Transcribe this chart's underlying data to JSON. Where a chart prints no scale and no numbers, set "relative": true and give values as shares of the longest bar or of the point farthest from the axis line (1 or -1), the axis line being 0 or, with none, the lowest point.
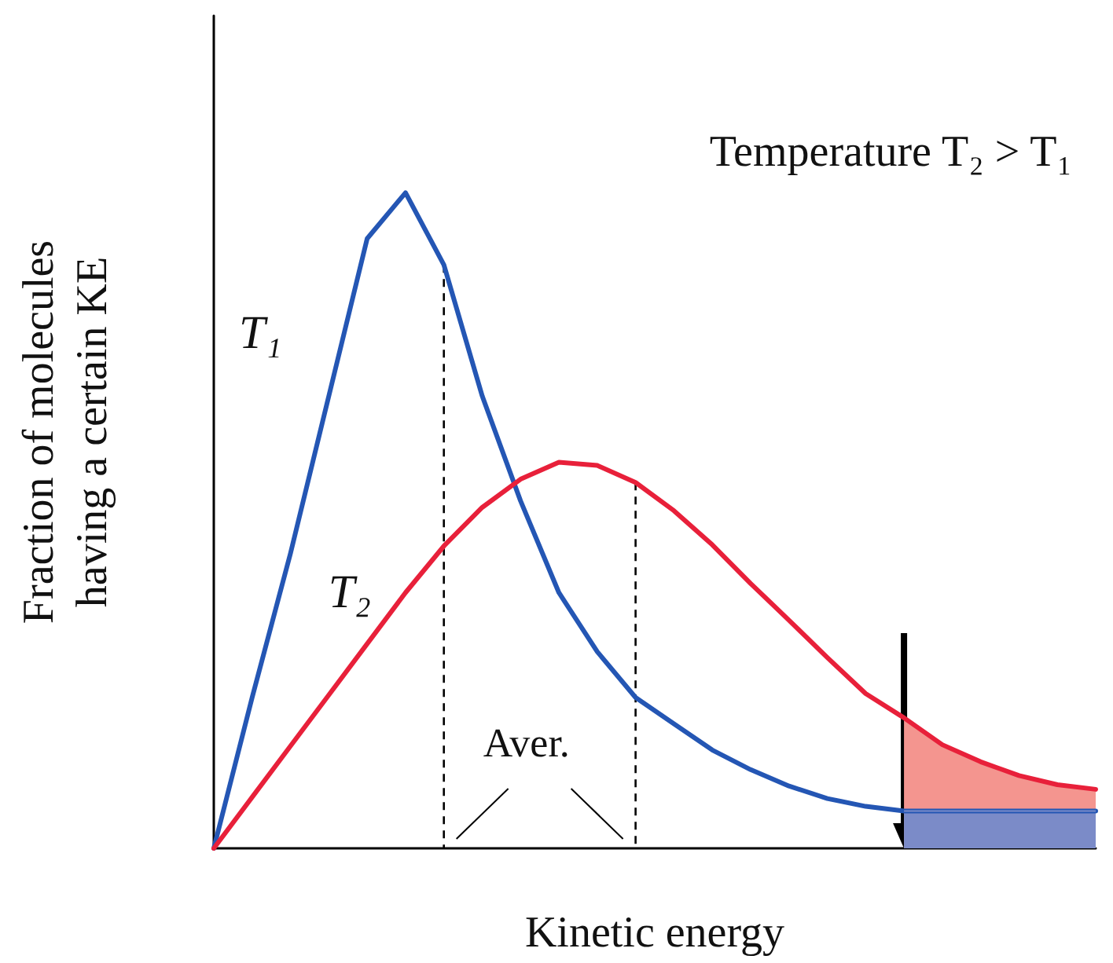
{
  "chart_data": {
    "type": "line",
    "title": "Temperature T₂ > T₁",
    "xlabel": "Kinetic energy",
    "ylabel": "Fraction of molecules\nhaving a certain KE",
    "relative": true,
    "grid": false,
    "legend": false,
    "marker": "none",
    "line_style": "solid",
    "categories": [
      null,
      null,
      null,
      null,
      null,
      null,
      null,
      null,
      null,
      null,
      null,
      null,
      null,
      null,
      null,
      null,
      null,
      null,
      null,
      null,
      null,
      null,
      null,
      null
    ],
    "series": [
      {
        "name": "T₁",
        "color": "#2456b4",
        "values": [
          0,
          0.23,
          0.45,
          0.69,
          0.93,
          1,
          0.89,
          0.69,
          0.53,
          0.39,
          0.3,
          0.23,
          0.19,
          0.15,
          0.12,
          0.095,
          0.076,
          0.064,
          0.057,
          0.057,
          0.057,
          0.057,
          0.057,
          0.057
        ]
      },
      {
        "name": "T₂",
        "color": "#e8203a",
        "values": [
          0,
          0.078,
          0.156,
          0.234,
          0.312,
          0.39,
          0.461,
          0.52,
          0.563,
          0.589,
          0.584,
          0.558,
          0.515,
          0.463,
          0.404,
          0.348,
          0.291,
          0.236,
          0.199,
          0.158,
          0.132,
          0.111,
          0.097,
          0.09
        ]
      },
      {
        "type": "area",
        "color": "#f4958f",
        "values": [
          null,
          null,
          null,
          null,
          null,
          null,
          null,
          null,
          null,
          null,
          null,
          null,
          null,
          null,
          null,
          null,
          null,
          null,
          0.199,
          0.158,
          0.132,
          0.111,
          0.097,
          0.09
        ]
      },
      {
        "type": "area",
        "color": "#7b8bc8",
        "values": [
          null,
          null,
          null,
          null,
          null,
          null,
          null,
          null,
          null,
          null,
          null,
          null,
          null,
          null,
          null,
          null,
          null,
          null,
          0.057,
          0.057,
          0.057,
          0.057,
          0.057,
          0.057
        ]
      }
    ],
    "annotations": [
      "Aver."
    ]
  }
}
